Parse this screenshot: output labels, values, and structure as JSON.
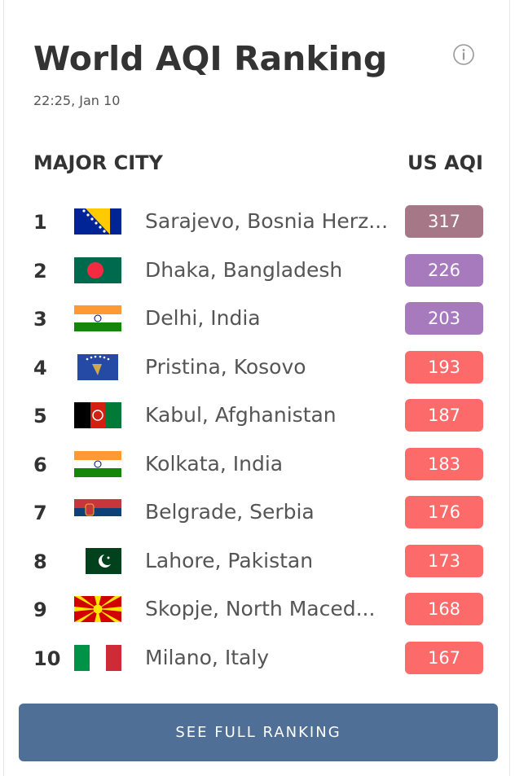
{
  "header": {
    "title": "World AQI Ranking",
    "timestamp": "22:25, Jan 10"
  },
  "columns": {
    "city": "MAJOR CITY",
    "aqi": "US AQI"
  },
  "rows": [
    {
      "rank": 1,
      "city": "Sarajevo, Bosnia Herz...",
      "aqi": 317,
      "color": "#a57787"
    },
    {
      "rank": 2,
      "city": "Dhaka, Bangladesh",
      "aqi": 226,
      "color": "#a67abd"
    },
    {
      "rank": 3,
      "city": "Delhi, India",
      "aqi": 203,
      "color": "#a67abd"
    },
    {
      "rank": 4,
      "city": "Pristina, Kosovo",
      "aqi": 193,
      "color": "#fd6a6a"
    },
    {
      "rank": 5,
      "city": "Kabul, Afghanistan",
      "aqi": 187,
      "color": "#fd6a6a"
    },
    {
      "rank": 6,
      "city": "Kolkata, India",
      "aqi": 183,
      "color": "#fd6a6a"
    },
    {
      "rank": 7,
      "city": "Belgrade, Serbia",
      "aqi": 176,
      "color": "#fd6a6a"
    },
    {
      "rank": 8,
      "city": "Lahore, Pakistan",
      "aqi": 173,
      "color": "#fd6a6a"
    },
    {
      "rank": 9,
      "city": "Skopje, North Maced...",
      "aqi": 168,
      "color": "#fd6a6a"
    },
    {
      "rank": 10,
      "city": "Milano, Italy",
      "aqi": 167,
      "color": "#fd6a6a"
    }
  ],
  "button": {
    "label": "SEE FULL RANKING"
  }
}
